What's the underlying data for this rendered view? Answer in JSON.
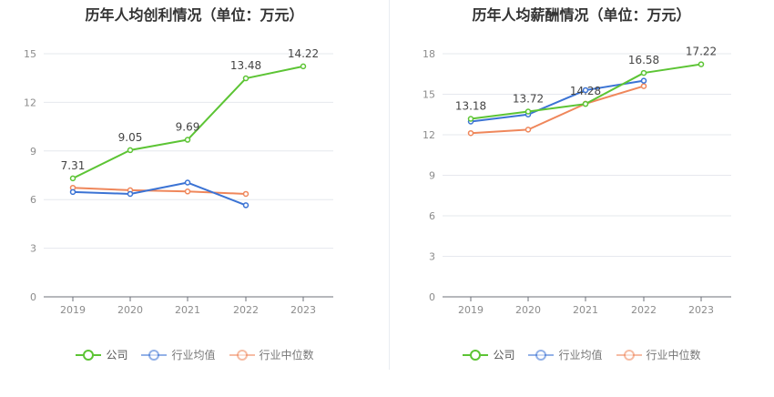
{
  "chart_data": [
    {
      "type": "line",
      "title": "历年人均创利情况（单位：万元）",
      "categories": [
        "2019",
        "2020",
        "2021",
        "2022",
        "2023"
      ],
      "ylim": [
        0,
        15
      ],
      "yticks": [
        0,
        3,
        6,
        9,
        12,
        15
      ],
      "grid": true,
      "legend_placement": "bottom",
      "series": [
        {
          "name": "公司",
          "color": "#5cc434",
          "values": [
            7.31,
            9.05,
            9.69,
            13.48,
            14.22
          ],
          "labels": [
            "7.31",
            "9.05",
            "9.69",
            "13.48",
            "14.22"
          ]
        },
        {
          "name": "行业均值",
          "color": "#3b73d4",
          "values": [
            6.47,
            6.35,
            7.05,
            5.65,
            null
          ]
        },
        {
          "name": "行业中位数",
          "color": "#ef875b",
          "values": [
            6.73,
            6.58,
            6.5,
            6.35,
            null
          ]
        }
      ]
    },
    {
      "type": "line",
      "title": "历年人均薪酬情况（单位：万元）",
      "categories": [
        "2019",
        "2020",
        "2021",
        "2022",
        "2023"
      ],
      "ylim": [
        0,
        18
      ],
      "yticks": [
        0,
        3,
        6,
        9,
        12,
        15,
        18
      ],
      "grid": true,
      "legend_placement": "bottom",
      "series": [
        {
          "name": "公司",
          "color": "#5cc434",
          "values": [
            13.18,
            13.72,
            14.28,
            16.58,
            17.22
          ],
          "labels": [
            "13.18",
            "13.72",
            "14.28",
            "16.58",
            "17.22"
          ]
        },
        {
          "name": "行业均值",
          "color": "#3b73d4",
          "values": [
            12.98,
            13.5,
            15.3,
            16.0,
            null
          ]
        },
        {
          "name": "行业中位数",
          "color": "#ef875b",
          "values": [
            12.12,
            12.38,
            14.3,
            15.6,
            null
          ]
        }
      ]
    }
  ]
}
